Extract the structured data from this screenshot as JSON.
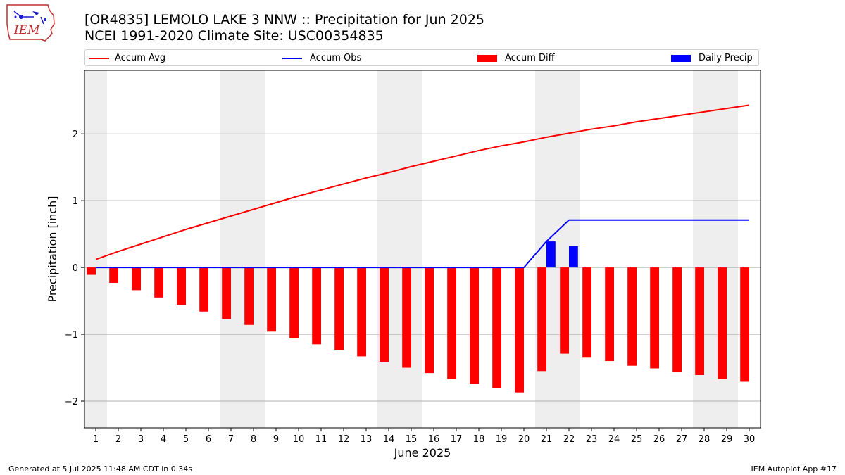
{
  "header": {
    "title_line1": "[OR4835] LEMOLO LAKE 3 NNW :: Precipitation for Jun 2025",
    "title_line2": "NCEI 1991-2020 Climate Site: USC00354835",
    "logo_text": "IEM"
  },
  "legend": [
    {
      "label": "Accum Avg",
      "kind": "line",
      "color": "#ff0000"
    },
    {
      "label": "Accum Obs",
      "kind": "line",
      "color": "#0000ff"
    },
    {
      "label": "Accum Diff",
      "kind": "bar",
      "color": "#ff0000"
    },
    {
      "label": "Daily Precip",
      "kind": "bar",
      "color": "#0000ff"
    }
  ],
  "footer": {
    "generated": "Generated at 5 Jul 2025 11:48 AM CDT in 0.34s",
    "app": "IEM Autoplot App #17"
  },
  "colors": {
    "accum_avg": "#ff0000",
    "accum_obs": "#0000ff",
    "accum_diff": "#ff0000",
    "daily_precip": "#0000ff",
    "weekend_shade": "#eeeeee",
    "grid": "#b0b0b0"
  },
  "chart_data": {
    "type": "bar",
    "xlabel": "June 2025",
    "ylabel": "Precipitation [inch]",
    "x": [
      1,
      2,
      3,
      4,
      5,
      6,
      7,
      8,
      9,
      10,
      11,
      12,
      13,
      14,
      15,
      16,
      17,
      18,
      19,
      20,
      21,
      22,
      23,
      24,
      25,
      26,
      27,
      28,
      29,
      30
    ],
    "xlim": [
      0.5,
      30.5
    ],
    "ylim": [
      -2.4,
      2.95
    ],
    "yticks": [
      -2,
      -1,
      0,
      1,
      2
    ],
    "ytick_labels": [
      "−2",
      "−1",
      "0",
      "1",
      "2"
    ],
    "grid": true,
    "legend_position": "top",
    "weekend_days": [
      1,
      7,
      8,
      14,
      15,
      21,
      22,
      28,
      29
    ],
    "series": [
      {
        "name": "Accum Avg",
        "type": "line",
        "values": [
          0.12,
          0.24,
          0.35,
          0.46,
          0.57,
          0.67,
          0.77,
          0.87,
          0.97,
          1.07,
          1.16,
          1.25,
          1.34,
          1.42,
          1.51,
          1.59,
          1.67,
          1.75,
          1.82,
          1.88,
          1.95,
          2.01,
          2.07,
          2.12,
          2.18,
          2.23,
          2.28,
          2.33,
          2.38,
          2.43
        ]
      },
      {
        "name": "Accum Obs",
        "type": "line",
        "values": [
          0,
          0,
          0,
          0,
          0,
          0,
          0,
          0,
          0,
          0,
          0,
          0,
          0,
          0,
          0,
          0,
          0,
          0,
          0,
          0,
          0.39,
          0.71,
          0.71,
          0.71,
          0.71,
          0.71,
          0.71,
          0.71,
          0.71,
          0.71
        ]
      },
      {
        "name": "Accum Diff",
        "type": "bar",
        "values": [
          -0.11,
          -0.23,
          -0.34,
          -0.45,
          -0.56,
          -0.66,
          -0.77,
          -0.86,
          -0.96,
          -1.06,
          -1.15,
          -1.24,
          -1.33,
          -1.41,
          -1.5,
          -1.58,
          -1.67,
          -1.74,
          -1.81,
          -1.87,
          -1.55,
          -1.29,
          -1.35,
          -1.4,
          -1.47,
          -1.51,
          -1.56,
          -1.61,
          -1.67,
          -1.71
        ]
      },
      {
        "name": "Daily Precip",
        "type": "bar",
        "values": [
          0,
          0,
          0,
          0,
          0,
          0,
          0,
          0,
          0,
          0,
          0,
          0,
          0,
          0,
          0,
          0,
          0,
          0,
          0,
          0,
          0.39,
          0.32,
          0,
          0,
          0,
          0,
          0,
          0,
          0,
          0
        ]
      }
    ]
  }
}
